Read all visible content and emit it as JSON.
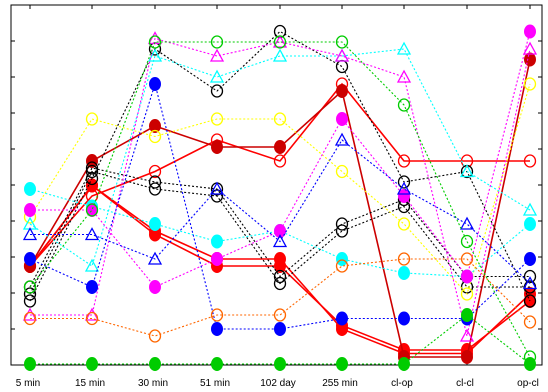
{
  "chart_data": {
    "type": "line",
    "title": "",
    "xlabel": "",
    "ylabel": "",
    "categories": [
      "5 min",
      "15 min",
      "30 min",
      "51 min",
      "102 day",
      "255 min",
      "cl-op",
      "cl-cl",
      "op-cl"
    ],
    "ylim": [
      0,
      100
    ],
    "grid": false,
    "legend": "none",
    "series": [
      {
        "color": "#ff0000",
        "marker": "filled-circle",
        "dash": "solid",
        "values": [
          28,
          51,
          38,
          30,
          30,
          10,
          3,
          3,
          20
        ]
      },
      {
        "color": "#ff0000",
        "marker": "filled-circle",
        "dash": "solid",
        "values": [
          28,
          51,
          37,
          28,
          28,
          11,
          4,
          4,
          18
        ]
      },
      {
        "color": "#ff0000",
        "marker": "open-circle",
        "dash": "solid",
        "values": [
          28,
          48,
          55,
          64,
          58,
          80,
          58,
          58,
          58
        ]
      },
      {
        "color": "#cc0000",
        "marker": "filled-circle",
        "dash": "solid",
        "values": [
          28,
          58,
          68,
          62,
          62,
          78,
          2,
          2,
          87
        ]
      },
      {
        "color": "#000000",
        "marker": "open-circle",
        "dash": "dotted",
        "values": [
          22,
          56,
          52,
          50,
          25,
          40,
          47,
          25,
          25
        ]
      },
      {
        "color": "#000000",
        "marker": "open-circle",
        "dash": "dotted",
        "values": [
          20,
          55,
          50,
          48,
          23,
          38,
          45,
          22,
          22
        ]
      },
      {
        "color": "#000000",
        "marker": "open-circle",
        "dash": "dotted",
        "values": [
          18,
          53,
          90,
          78,
          95,
          85,
          52,
          55,
          18
        ]
      },
      {
        "color": "#ffff00",
        "marker": "open-circle",
        "dash": "dotted",
        "values": [
          42,
          70,
          65,
          70,
          70,
          55,
          40,
          20,
          80
        ]
      },
      {
        "color": "#00ffff",
        "marker": "filled-circle",
        "dash": "dotted",
        "values": [
          50,
          45,
          40,
          35,
          38,
          30,
          26,
          25,
          40
        ]
      },
      {
        "color": "#00ffff",
        "marker": "open-triangle",
        "dash": "dotted",
        "values": [
          40,
          28,
          88,
          82,
          88,
          88,
          90,
          55,
          44
        ]
      },
      {
        "color": "#ff00ff",
        "marker": "filled-circle",
        "dash": "dotted",
        "values": [
          44,
          44,
          22,
          30,
          38,
          70,
          48,
          25,
          95
        ]
      },
      {
        "color": "#ff00ff",
        "marker": "open-triangle",
        "dash": "dotted",
        "values": [
          14,
          14,
          93,
          88,
          92,
          88,
          82,
          8,
          90
        ]
      },
      {
        "color": "#0000ff",
        "marker": "filled-circle",
        "dash": "dotted",
        "values": [
          30,
          22,
          80,
          10,
          10,
          13,
          13,
          13,
          30
        ]
      },
      {
        "color": "#0000ff",
        "marker": "open-triangle",
        "dash": "dotted",
        "values": [
          37,
          37,
          30,
          50,
          35,
          64,
          50,
          40,
          23
        ]
      },
      {
        "color": "#ff6600",
        "marker": "open-circle",
        "dash": "dotted",
        "values": [
          13,
          13,
          8,
          14,
          14,
          28,
          30,
          30,
          12
        ]
      },
      {
        "color": "#00cc00",
        "marker": "filled-circle",
        "dash": "dotted",
        "values": [
          0,
          0,
          0,
          0,
          0,
          0,
          0,
          14,
          0
        ]
      },
      {
        "color": "#00cc00",
        "marker": "open-circle",
        "dash": "dotted",
        "values": [
          22,
          44,
          92,
          92,
          92,
          92,
          74,
          35,
          2
        ]
      }
    ]
  }
}
